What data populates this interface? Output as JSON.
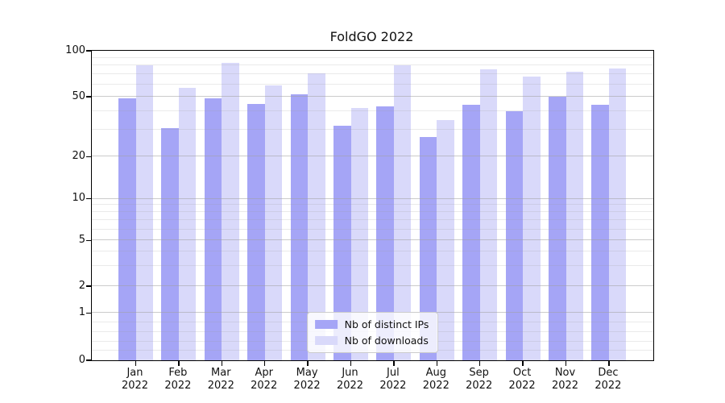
{
  "chart": {
    "title": "FoldGO 2022",
    "legend": {
      "items": [
        {
          "label": "Nb of distinct IPs",
          "color": "#a5a5f6"
        },
        {
          "label": "Nb of downloads",
          "color": "#d9d9fa"
        }
      ]
    }
  },
  "chart_data": {
    "type": "bar",
    "title": "FoldGO 2022",
    "categories": [
      "Jan",
      "Feb",
      "Mar",
      "Apr",
      "May",
      "Jun",
      "Jul",
      "Aug",
      "Sep",
      "Oct",
      "Nov",
      "Dec"
    ],
    "category_year": "2022",
    "series": [
      {
        "name": "Nb of distinct IPs",
        "color": "#a5a5f6",
        "values": [
          49,
          31,
          49,
          45,
          52,
          32,
          43,
          27,
          44,
          40,
          50,
          44
        ]
      },
      {
        "name": "Nb of downloads",
        "color": "#d9d9fa",
        "values": [
          80,
          57,
          83,
          59,
          71,
          42,
          80,
          35,
          76,
          68,
          73,
          77
        ]
      }
    ],
    "xlabel": "",
    "ylabel": "",
    "ylim": [
      0,
      100
    ],
    "yscale": "symlog",
    "y_ticks": [
      0,
      1,
      2,
      5,
      10,
      20,
      50,
      100
    ],
    "y_minor_ticks": [
      0.2,
      0.4,
      0.6,
      0.8,
      3,
      4,
      6,
      7,
      8,
      9,
      30,
      40,
      60,
      70,
      80,
      90
    ],
    "grid": "horizontal major+minor gridlines drawn over bars",
    "legend_position": "lower center"
  }
}
